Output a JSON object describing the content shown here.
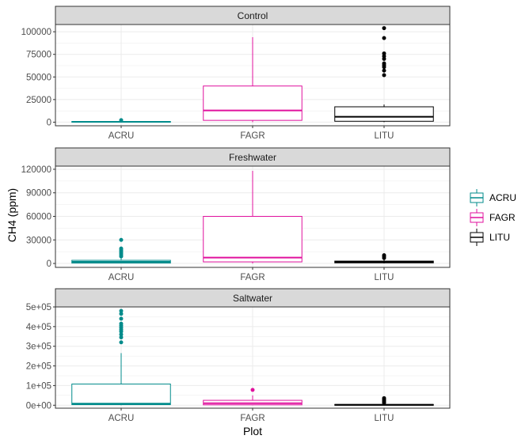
{
  "chart_data": {
    "type": "box",
    "xlabel": "Plot",
    "ylabel": "CH4 (ppm)",
    "categories": [
      "ACRU",
      "FAGR",
      "LITU"
    ],
    "legend": {
      "position": "right",
      "entries": [
        {
          "name": "ACRU",
          "color": "#008B8B"
        },
        {
          "name": "FAGR",
          "color": "#E0119D"
        },
        {
          "name": "LITU",
          "color": "#000000"
        }
      ]
    },
    "grid": true,
    "facets": [
      {
        "strip": "Control",
        "ylim": [
          -4000,
          108000
        ],
        "yticks": [
          0,
          25000,
          50000,
          75000,
          100000
        ],
        "ytick_labels": [
          "0",
          "25000",
          "50000",
          "75000",
          "100000"
        ],
        "boxes": [
          {
            "category": "ACRU",
            "q1": 100,
            "median": 400,
            "q3": 800,
            "whisker_low": 0,
            "whisker_high": 1600,
            "outliers": [
              2200
            ]
          },
          {
            "category": "FAGR",
            "q1": 2000,
            "median": 13000,
            "q3": 40000,
            "whisker_low": 0,
            "whisker_high": 94000,
            "outliers": []
          },
          {
            "category": "LITU",
            "q1": 1000,
            "median": 6000,
            "q3": 17000,
            "whisker_low": 0,
            "whisker_high": 19500,
            "outliers": [
              52000,
              57000,
              61000,
              63000,
              65000,
              70000,
              73000,
              76000,
              93000,
              104000
            ]
          }
        ]
      },
      {
        "strip": "Freshwater",
        "ylim": [
          -5000,
          124000
        ],
        "yticks": [
          0,
          30000,
          60000,
          90000,
          120000
        ],
        "ytick_labels": [
          "0",
          "30000",
          "60000",
          "90000",
          "120000"
        ],
        "boxes": [
          {
            "category": "ACRU",
            "q1": 500,
            "median": 2000,
            "q3": 4000,
            "whisker_low": 0,
            "whisker_high": 7000,
            "outliers": [
              9000,
              11000,
              13000,
              15000,
              17000,
              19000,
              30000
            ]
          },
          {
            "category": "FAGR",
            "q1": 2000,
            "median": 7500,
            "q3": 60000,
            "whisker_low": 0,
            "whisker_high": 118000,
            "outliers": []
          },
          {
            "category": "LITU",
            "q1": 800,
            "median": 2000,
            "q3": 3000,
            "whisker_low": 0,
            "whisker_high": 5000,
            "outliers": [
              7000,
              9000,
              10500
            ]
          }
        ]
      },
      {
        "strip": "Saltwater",
        "ylim": [
          -15000,
          500000
        ],
        "yticks": [
          0,
          100000,
          200000,
          300000,
          400000,
          500000
        ],
        "ytick_labels": [
          "0e+00",
          "1e+05",
          "2e+05",
          "3e+05",
          "4e+05",
          "5e+05"
        ],
        "boxes": [
          {
            "category": "ACRU",
            "q1": 3000,
            "median": 8000,
            "q3": 108000,
            "whisker_low": 0,
            "whisker_high": 265000,
            "outliers": [
              320000,
              345000,
              360000,
              375000,
              385000,
              395000,
              405000,
              415000,
              440000,
              465000,
              480000
            ]
          },
          {
            "category": "FAGR",
            "q1": 2000,
            "median": 10000,
            "q3": 25000,
            "whisker_low": 0,
            "whisker_high": 50000,
            "outliers": [
              78000
            ]
          },
          {
            "category": "LITU",
            "q1": 500,
            "median": 2000,
            "q3": 4000,
            "whisker_low": 0,
            "whisker_high": 8000,
            "outliers": [
              12000,
              18000,
              24000,
              30000,
              36000
            ]
          }
        ]
      }
    ]
  }
}
